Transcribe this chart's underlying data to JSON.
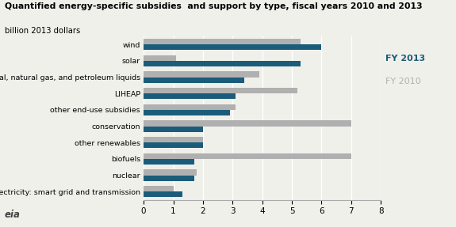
{
  "title": "Quantified energy-specific subsidies  and support by type, fiscal years 2010 and 2013",
  "subtitle": "billion 2013 dollars",
  "categories": [
    "wind",
    "solar",
    "coal, natural gas, and petroleum liquids",
    "LIHEAP",
    "other end-use subsidies",
    "conservation",
    "other renewables",
    "biofuels",
    "nuclear",
    "electricity: smart grid and transmission"
  ],
  "fy2013": [
    6.0,
    5.3,
    3.4,
    3.1,
    2.9,
    2.0,
    2.0,
    1.7,
    1.7,
    1.3
  ],
  "fy2010": [
    5.3,
    1.1,
    3.9,
    5.2,
    3.1,
    7.0,
    2.0,
    7.0,
    1.8,
    1.0
  ],
  "color_2013": "#1b5c7a",
  "color_2010": "#b0b0b0",
  "xlim": [
    0,
    8
  ],
  "xticks": [
    0,
    1,
    2,
    3,
    4,
    5,
    6,
    7,
    8
  ],
  "legend_2013_label": "FY 2013",
  "legend_2010_label": "FY 2010",
  "background_color": "#f0f0eb"
}
